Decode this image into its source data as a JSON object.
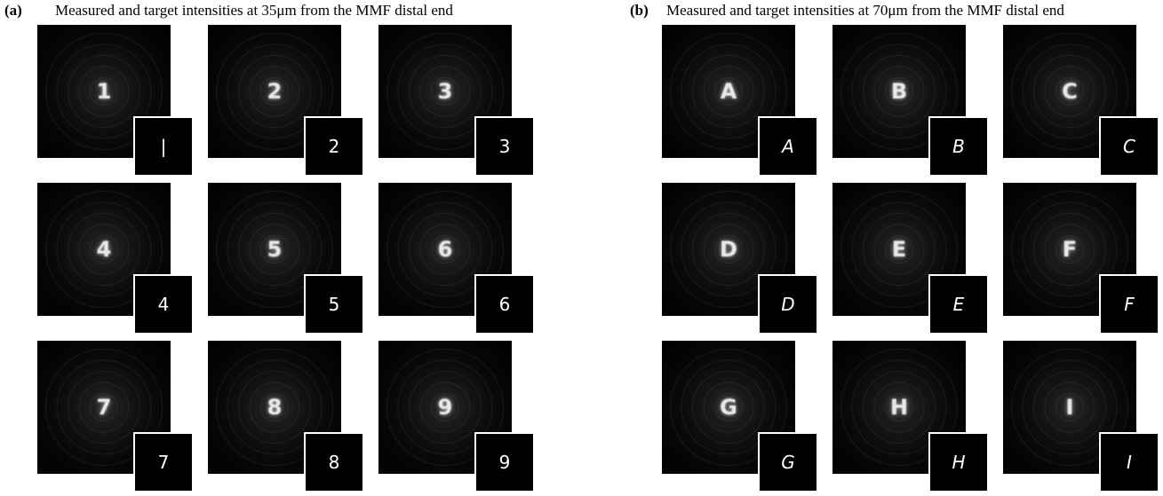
{
  "figure": {
    "panel_a": {
      "tag": "(a)",
      "caption": "Measured and target intensities at 35μm from the MMF distal end",
      "items": [
        {
          "measured": "1",
          "target": "|"
        },
        {
          "measured": "2",
          "target": "2"
        },
        {
          "measured": "3",
          "target": "3"
        },
        {
          "measured": "4",
          "target": "4"
        },
        {
          "measured": "5",
          "target": "5"
        },
        {
          "measured": "6",
          "target": "6"
        },
        {
          "measured": "7",
          "target": "7"
        },
        {
          "measured": "8",
          "target": "8"
        },
        {
          "measured": "9",
          "target": "9"
        }
      ]
    },
    "panel_b": {
      "tag": "(b)",
      "caption": "Measured and target intensities at 70μm from the MMF distal end",
      "items": [
        {
          "measured": "A",
          "target": "A"
        },
        {
          "measured": "B",
          "target": "B"
        },
        {
          "measured": "C",
          "target": "C"
        },
        {
          "measured": "D",
          "target": "D"
        },
        {
          "measured": "E",
          "target": "E"
        },
        {
          "measured": "F",
          "target": "F"
        },
        {
          "measured": "G",
          "target": "G"
        },
        {
          "measured": "H",
          "target": "H"
        },
        {
          "measured": "I",
          "target": "I"
        }
      ]
    }
  }
}
